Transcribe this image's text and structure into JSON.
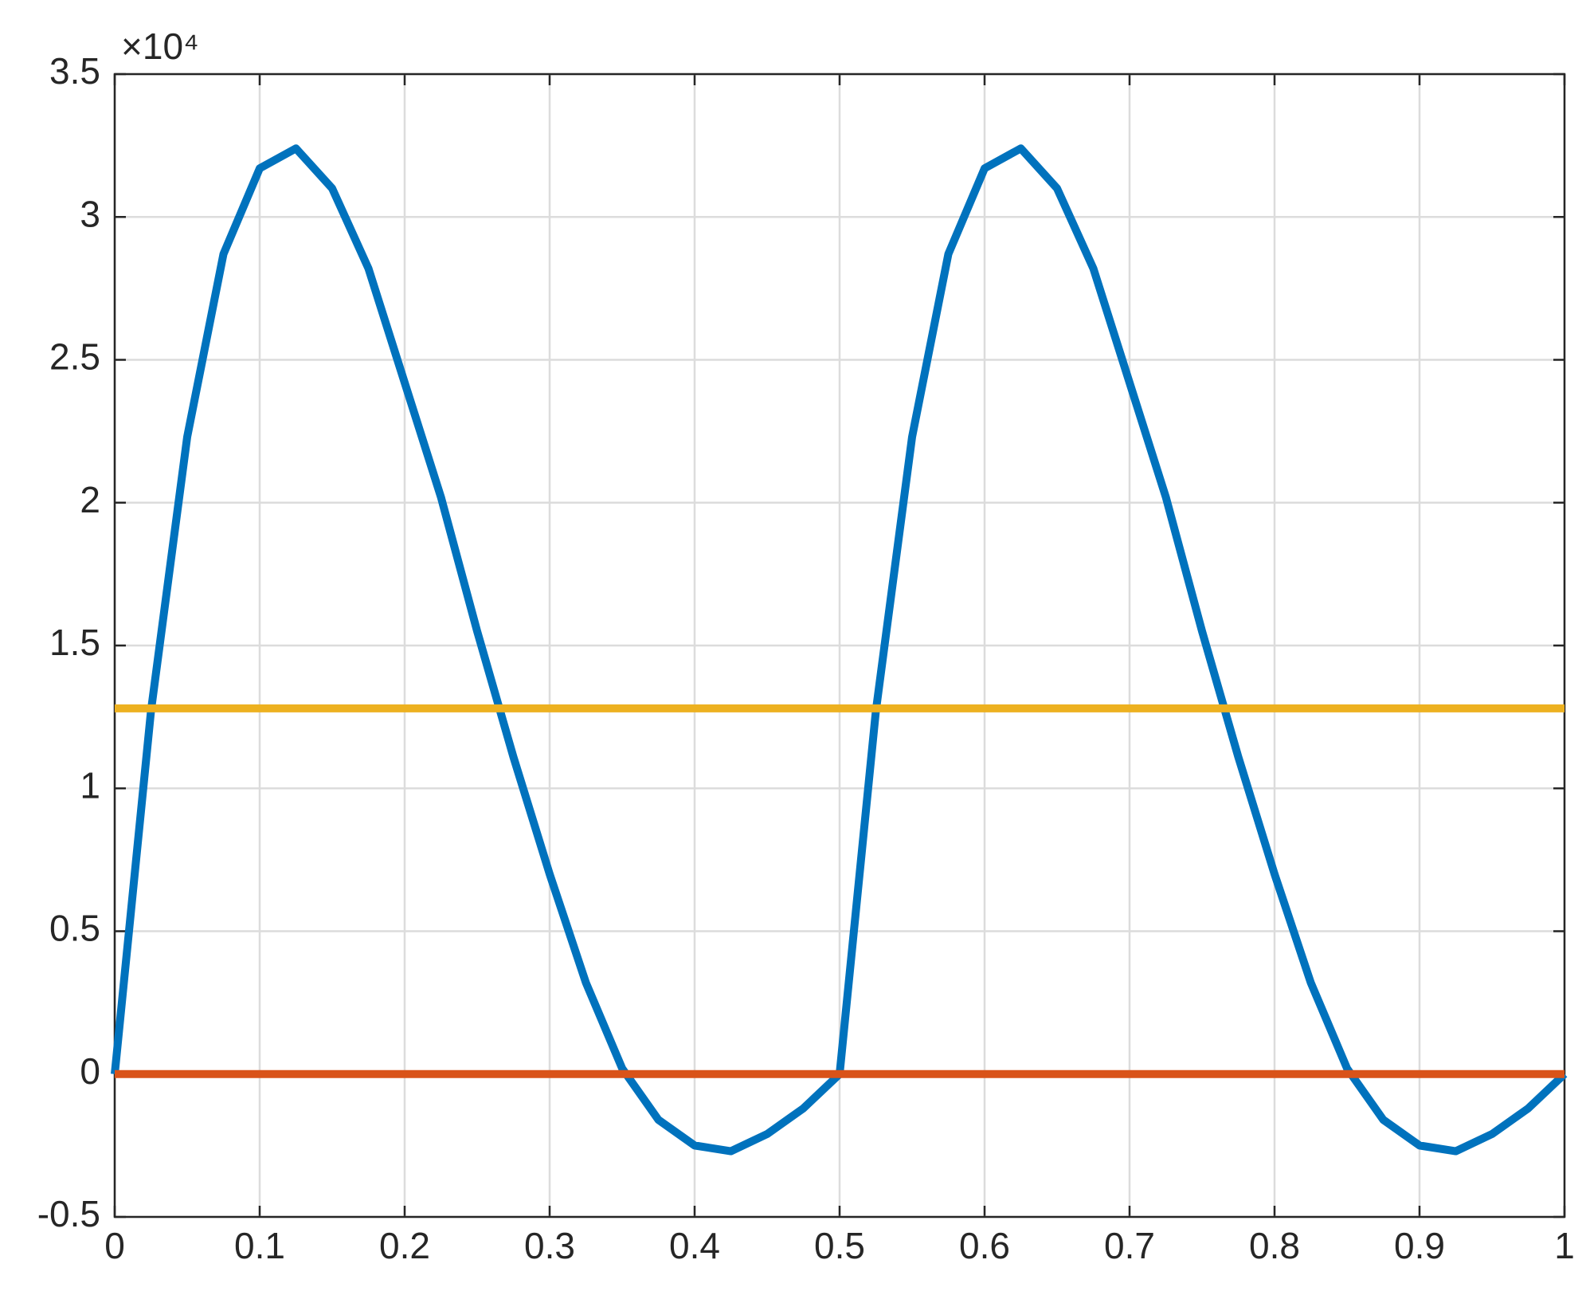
{
  "chart_data": {
    "type": "line",
    "y_multiplier": "×10⁴",
    "x": [
      0,
      0.025,
      0.05,
      0.075,
      0.1,
      0.125,
      0.15,
      0.175,
      0.2,
      0.225,
      0.25,
      0.275,
      0.3,
      0.325,
      0.35,
      0.375,
      0.4,
      0.425,
      0.45,
      0.475,
      0.5,
      0.525,
      0.55,
      0.575,
      0.6,
      0.625,
      0.65,
      0.675,
      0.7,
      0.725,
      0.75,
      0.775,
      0.8,
      0.825,
      0.85,
      0.875,
      0.9,
      0.925,
      0.95,
      0.975,
      1
    ],
    "series": [
      {
        "color": "#0072BD",
        "values": [
          0,
          1.27,
          2.23,
          2.87,
          3.17,
          3.24,
          3.1,
          2.82,
          2.42,
          2.02,
          1.55,
          1.11,
          0.7,
          0.32,
          0.02,
          -0.16,
          -0.25,
          -0.27,
          -0.21,
          -0.12,
          0,
          1.27,
          2.23,
          2.87,
          3.17,
          3.24,
          3.1,
          2.82,
          2.42,
          2.02,
          1.55,
          1.11,
          0.7,
          0.32,
          0.02,
          -0.16,
          -0.25,
          -0.27,
          -0.21,
          -0.12,
          0
        ]
      },
      {
        "color": "#EDB120",
        "x": [
          0,
          1
        ],
        "values": [
          1.28,
          1.28
        ]
      },
      {
        "color": "#D95319",
        "x": [
          0,
          1
        ],
        "values": [
          0,
          0
        ]
      }
    ],
    "xlim": [
      0,
      1
    ],
    "xticks": [
      0,
      0.1,
      0.2,
      0.3,
      0.4,
      0.5,
      0.6,
      0.7,
      0.8,
      0.9,
      1
    ],
    "ylim": [
      -0.5,
      3.5
    ],
    "yticks": [
      -0.5,
      0,
      0.5,
      1,
      1.5,
      2,
      2.5,
      3,
      3.5
    ],
    "grid": true
  }
}
